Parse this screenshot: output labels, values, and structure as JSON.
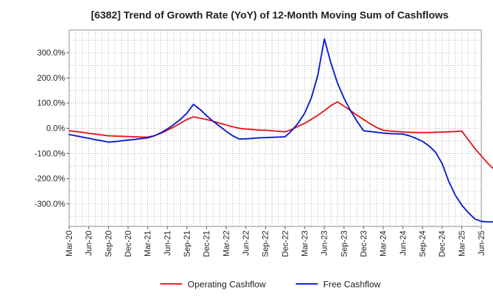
{
  "chart_data": {
    "type": "line",
    "title": "[6382]  Trend of Growth Rate (YoY) of 12-Month Moving Sum of Cashflows",
    "xlabel": "",
    "ylabel": "",
    "ylim": [
      -390,
      390
    ],
    "y_ticks": [
      300,
      200,
      100,
      0,
      -100,
      -200,
      -300
    ],
    "y_tick_labels": [
      "300.0%",
      "200.0%",
      "100.0%",
      "0.0%",
      "-100.0%",
      "-200.0%",
      "-300.0%"
    ],
    "x_tick_labels": [
      "Mar-20",
      "Jun-20",
      "Sep-20",
      "Dec-20",
      "Mar-21",
      "Jun-21",
      "Sep-21",
      "Dec-21",
      "Mar-22",
      "Jun-22",
      "Sep-22",
      "Dec-22",
      "Mar-23",
      "Jun-23",
      "Sep-23",
      "Dec-23",
      "Mar-24",
      "Jun-24",
      "Sep-24",
      "Dec-24",
      "Mar-25",
      "Jun-25"
    ],
    "grid": true,
    "legend_position": "bottom",
    "series": [
      {
        "name": "Operating Cashflow",
        "color": "#e31a1c",
        "x": [
          0,
          1,
          2,
          3,
          4,
          5,
          6,
          7,
          8,
          9,
          10,
          11,
          12,
          13,
          14,
          15,
          16,
          17,
          18,
          19,
          20,
          21,
          22,
          23,
          24,
          25,
          26,
          27,
          28,
          29,
          30,
          31,
          32,
          33,
          34,
          35,
          36,
          37,
          38,
          39,
          40,
          41,
          42,
          43,
          44,
          45,
          46,
          47,
          48,
          49,
          50,
          51,
          52,
          53,
          54,
          55,
          56,
          57,
          58,
          59,
          60
        ],
        "values": [
          -10,
          -13,
          -16,
          -20,
          -23,
          -27,
          -30,
          -31,
          -32,
          -33,
          -34,
          -35,
          -35,
          -30,
          -20,
          -8,
          5,
          20,
          35,
          45,
          40,
          35,
          28,
          20,
          13,
          6,
          0,
          -3,
          -5,
          -7,
          -8,
          -10,
          -12,
          -14,
          -5,
          8,
          20,
          35,
          52,
          70,
          90,
          105,
          88,
          70,
          52,
          35,
          18,
          3,
          -8,
          -11,
          -13,
          -15,
          -16,
          -17,
          -17,
          -17,
          -16,
          -15,
          -14,
          -13,
          -11
        ]
      },
      {
        "name": "Free Cashflow",
        "color": "#0a1ccf",
        "x": [
          0,
          1,
          2,
          3,
          4,
          5,
          6,
          7,
          8,
          9,
          10,
          11,
          12,
          13,
          14,
          15,
          16,
          17,
          18,
          19,
          20,
          21,
          22,
          23,
          24,
          25,
          26,
          27,
          28,
          29,
          30,
          31,
          32,
          33,
          34,
          35,
          36,
          37,
          38,
          39,
          40,
          41,
          42,
          43,
          44,
          45,
          46,
          47,
          48,
          49,
          50,
          51,
          52,
          53,
          54,
          55,
          56,
          57,
          58,
          59,
          60
        ],
        "values": [
          -25,
          -30,
          -35,
          -40,
          -45,
          -50,
          -55,
          -53,
          -50,
          -47,
          -44,
          -41,
          -38,
          -30,
          -18,
          -3,
          15,
          35,
          60,
          95,
          75,
          50,
          28,
          8,
          -12,
          -30,
          -43,
          -42,
          -40,
          -38,
          -37,
          -36,
          -35,
          -34,
          -10,
          20,
          60,
          120,
          210,
          355,
          260,
          180,
          120,
          70,
          28,
          -10,
          -13,
          -16,
          -19,
          -21,
          -22,
          -23,
          -30,
          -40,
          -52,
          -70,
          -95,
          -140,
          -210,
          -265,
          -305
        ]
      }
    ],
    "series_extension": {
      "Operating Cashflow": {
        "x": [
          60,
          61,
          62,
          63,
          64,
          65
        ],
        "values": [
          -11,
          -45,
          -80,
          -110,
          -140,
          -165
        ]
      },
      "Free Cashflow": {
        "x": [
          60,
          61,
          62,
          63,
          64,
          65
        ],
        "values": [
          -305,
          -335,
          -360,
          -370,
          -372,
          -372
        ]
      }
    }
  }
}
